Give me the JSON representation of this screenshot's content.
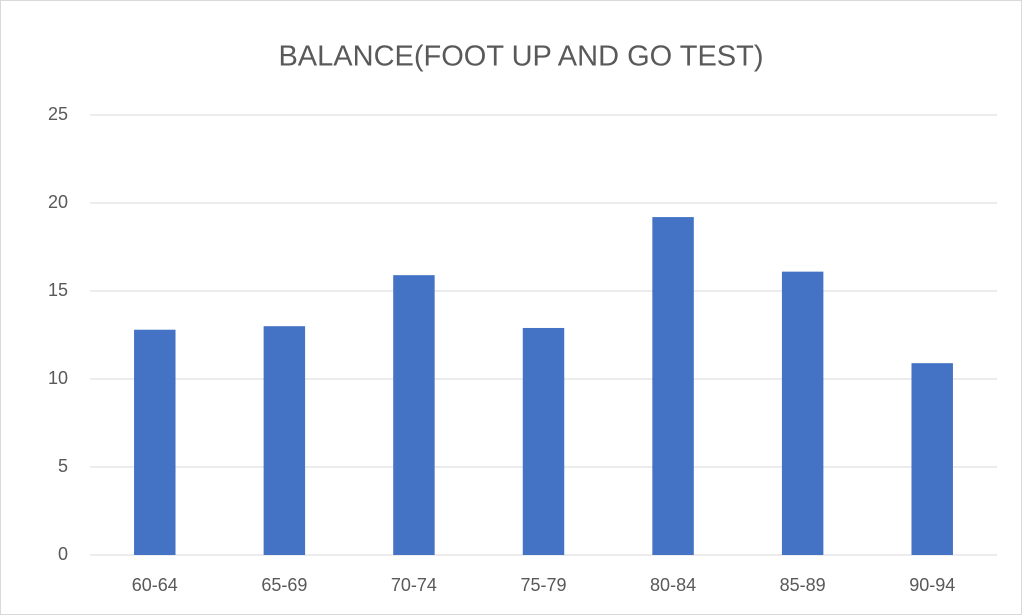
{
  "chart_data": {
    "type": "bar",
    "title": "BALANCE(FOOT UP AND GO TEST)",
    "categories": [
      "60-64",
      "65-69",
      "70-74",
      "75-79",
      "80-84",
      "85-89",
      "90-94"
    ],
    "values": [
      12.8,
      13.0,
      15.9,
      12.9,
      19.2,
      16.1,
      10.9
    ],
    "color": "#4472c4",
    "ylim": [
      0,
      25
    ],
    "yticks": [
      0,
      5,
      10,
      15,
      20,
      25
    ],
    "grid": true
  }
}
